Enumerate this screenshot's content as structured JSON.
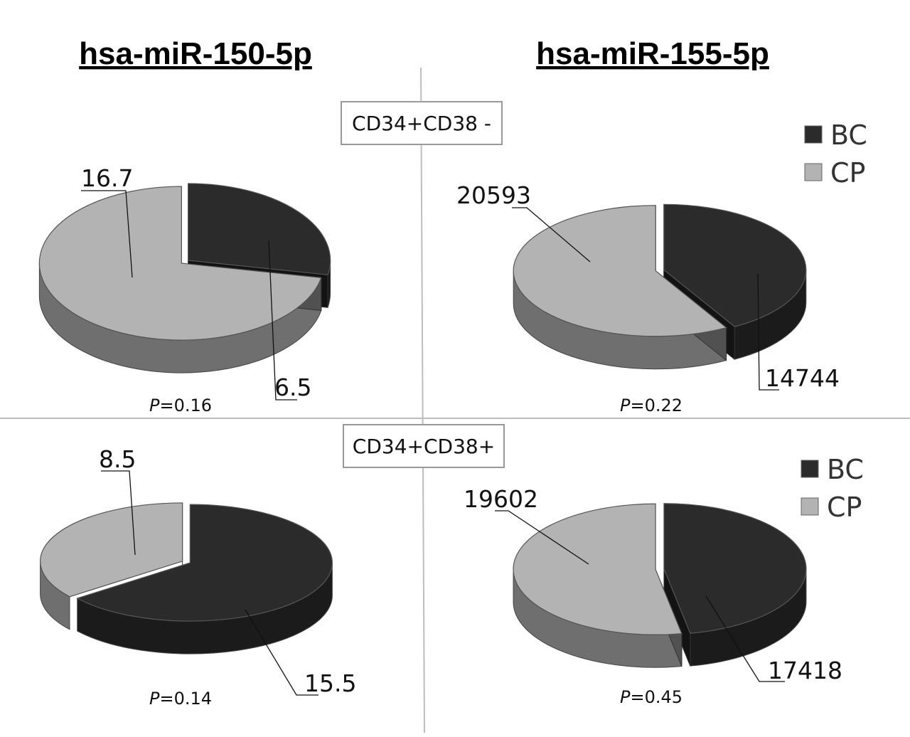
{
  "chart_data": [
    {
      "type": "pie",
      "column_title": "hsa-miR-150-5p",
      "group": "CD34+CD38 -",
      "slices": [
        {
          "name": "BC",
          "value": 6.5,
          "color": "#2b2b2b"
        },
        {
          "name": "CP",
          "value": 16.7,
          "color": "#b3b3b3"
        }
      ],
      "p_label": "P",
      "p_text": "=0.16"
    },
    {
      "type": "pie",
      "column_title": "hsa-miR-155-5p",
      "group": "CD34+CD38 -",
      "slices": [
        {
          "name": "BC",
          "value": 14744,
          "color": "#2b2b2b"
        },
        {
          "name": "CP",
          "value": 20593,
          "color": "#b3b3b3"
        }
      ],
      "p_label": "P",
      "p_text": "=0.22"
    },
    {
      "type": "pie",
      "column_title": "hsa-miR-150-5p",
      "group": "CD34+CD38+",
      "slices": [
        {
          "name": "BC",
          "value": 15.5,
          "color": "#2b2b2b"
        },
        {
          "name": "CP",
          "value": 8.5,
          "color": "#b3b3b3"
        }
      ],
      "p_label": "P",
      "p_text": "=0.14"
    },
    {
      "type": "pie",
      "column_title": "hsa-miR-155-5p",
      "group": "CD34+CD38+",
      "slices": [
        {
          "name": "BC",
          "value": 17418,
          "color": "#2b2b2b"
        },
        {
          "name": "CP",
          "value": 19602,
          "color": "#b3b3b3"
        }
      ],
      "p_label": "P",
      "p_text": "=0.45"
    }
  ],
  "titles": {
    "left": "hsa-miR-150-5p",
    "right": "hsa-miR-155-5p"
  },
  "group_labels": {
    "top": "CD34+CD38 -",
    "bottom": "CD34+CD38+"
  },
  "legend": [
    {
      "name": "BC",
      "color": "#2b2b2b"
    },
    {
      "name": "CP",
      "color": "#b3b3b3"
    }
  ]
}
